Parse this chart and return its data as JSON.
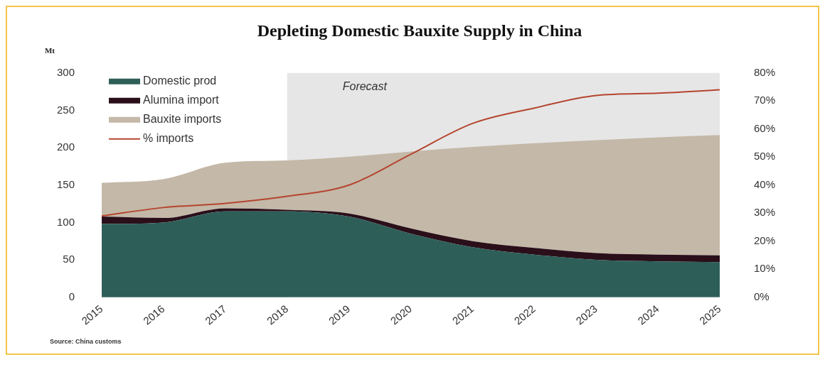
{
  "chart_data": {
    "type": "area",
    "title": "Depleting Domestic Bauxite Supply in China",
    "ylabel": "Mt",
    "stacked": true,
    "categories": [
      "2015",
      "2016",
      "2017",
      "2018",
      "2019",
      "2020",
      "2021",
      "2022",
      "2023",
      "2024",
      "2025"
    ],
    "series": [
      {
        "name": "Domestic prod",
        "color": "#2e5e58",
        "values": [
          98,
          100,
          115,
          115,
          108,
          85,
          67,
          57,
          50,
          48,
          47
        ]
      },
      {
        "name": "Alumina import",
        "color": "#2a0f1a",
        "values": [
          10,
          6,
          4,
          2,
          4,
          7,
          8,
          9,
          9,
          9,
          9
        ]
      },
      {
        "name": "Bauxite imports",
        "color": "#c4b8a8",
        "values": [
          45,
          52,
          61,
          66,
          76,
          103,
          126,
          140,
          151,
          157,
          161
        ]
      },
      {
        "name": "% imports",
        "type": "line",
        "axis": "y2",
        "color": "#b5452e",
        "values": [
          29,
          32,
          33.5,
          36,
          40,
          51,
          62,
          67.5,
          72,
          72.8,
          74
        ]
      }
    ],
    "ylim": [
      0,
      300
    ],
    "yticks": [
      0,
      50,
      100,
      150,
      200,
      250,
      300
    ],
    "y2lim": [
      0,
      80
    ],
    "y2ticks": [
      {
        "value": 0,
        "label": "0%"
      },
      {
        "value": 10,
        "label": "10%"
      },
      {
        "value": 20,
        "label": "20%"
      },
      {
        "value": 30,
        "label": "30%"
      },
      {
        "value": 40,
        "label": "40%"
      },
      {
        "value": 50,
        "label": "50%"
      },
      {
        "value": 60,
        "label": "60%"
      },
      {
        "value": 70,
        "label": "70%"
      },
      {
        "value": 80,
        "label": "80%"
      }
    ],
    "bands": [
      {
        "axis": "x",
        "from": "2018",
        "to": "2025",
        "label": "Forecast",
        "color": "#e6e6e6"
      }
    ],
    "legend": "top left",
    "grid": false,
    "marker": "none",
    "line_style": "solid",
    "annotations": [
      "Source: China customs"
    ]
  }
}
